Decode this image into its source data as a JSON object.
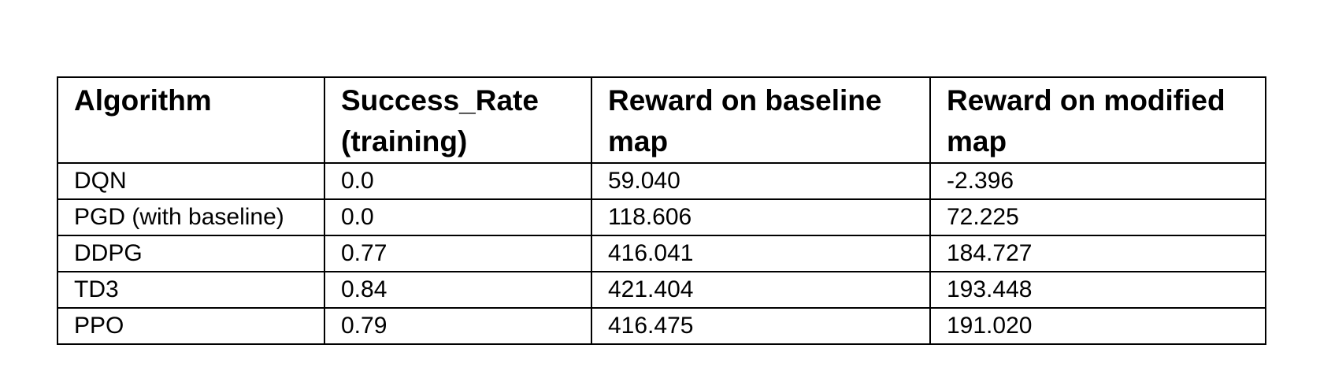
{
  "table": {
    "headers": [
      "Algorithm",
      "Success_Rate (training)",
      "Reward on baseline map",
      "Reward on modified map"
    ],
    "rows": [
      [
        "DQN",
        "0.0",
        "59.040",
        "-2.396"
      ],
      [
        "PGD (with baseline)",
        "0.0",
        "118.606",
        "72.225"
      ],
      [
        "DDPG",
        "0.77",
        "416.041",
        "184.727"
      ],
      [
        "TD3",
        "0.84",
        "421.404",
        "193.448"
      ],
      [
        "PPO",
        "0.79",
        "416.475",
        "191.020"
      ]
    ]
  }
}
